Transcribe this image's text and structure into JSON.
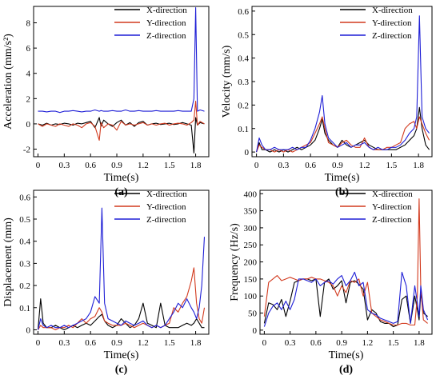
{
  "figure": {
    "colors": {
      "X-direction": "#000000",
      "Y-direction": "#d23a1e",
      "Z-direction": "#1f1fd6"
    },
    "series_names": [
      "X-direction",
      "Y-direction",
      "Z-direction"
    ]
  },
  "chart_data": [
    {
      "type": "line",
      "panel_label": "(a)",
      "xlabel": "Time(s)",
      "ylabel": "Acceleration (mm/s²)",
      "xlim": [
        -0.05,
        1.95
      ],
      "ylim": [
        -2.6,
        9.3
      ],
      "xticks": [
        0,
        0.3,
        0.6,
        0.9,
        1.2,
        1.5,
        1.8
      ],
      "yticks": [
        -2,
        0,
        2,
        4,
        6,
        8
      ],
      "x": [
        0,
        0.05,
        0.1,
        0.15,
        0.2,
        0.25,
        0.3,
        0.35,
        0.4,
        0.45,
        0.5,
        0.55,
        0.6,
        0.65,
        0.7,
        0.72,
        0.75,
        0.8,
        0.85,
        0.9,
        0.95,
        1.0,
        1.05,
        1.1,
        1.15,
        1.2,
        1.25,
        1.3,
        1.35,
        1.4,
        1.45,
        1.5,
        1.55,
        1.6,
        1.65,
        1.7,
        1.75,
        1.78,
        1.8,
        1.82,
        1.85,
        1.9
      ],
      "series": [
        {
          "name": "X-direction",
          "values": [
            0,
            -0.1,
            0.05,
            -0.1,
            0,
            -0.05,
            0.05,
            0,
            -0.1,
            0.05,
            0,
            0.1,
            0.2,
            -0.3,
            0.5,
            -0.2,
            0.3,
            0,
            -0.2,
            0.1,
            0.3,
            -0.1,
            0.1,
            -0.2,
            0.1,
            0.2,
            -0.1,
            0,
            0.05,
            -0.05,
            0,
            0.05,
            -0.05,
            0,
            0.1,
            0,
            -0.1,
            -2.3,
            0.5,
            -0.1,
            0.1,
            0
          ]
        },
        {
          "name": "Y-direction",
          "values": [
            0,
            -0.2,
            0,
            -0.1,
            -0.2,
            0,
            -0.1,
            -0.2,
            0,
            -0.1,
            -0.3,
            0,
            0.1,
            -0.2,
            -1.3,
            0.1,
            -0.3,
            0,
            -0.1,
            -0.5,
            0.2,
            -0.1,
            0,
            -0.1,
            0,
            0.1,
            -0.1,
            0,
            -0.1,
            0,
            0.05,
            -0.1,
            0,
            0.05,
            0,
            -0.1,
            0.1,
            0.3,
            1.8,
            -0.1,
            0.2,
            0
          ]
        },
        {
          "name": "Z-direction",
          "values": [
            1.0,
            1.0,
            0.95,
            1.0,
            1.0,
            0.9,
            1.0,
            1.0,
            1.05,
            1.0,
            0.95,
            1.0,
            1.0,
            1.1,
            1.0,
            1.05,
            1.0,
            1.0,
            1.05,
            1.0,
            1.0,
            1.1,
            1.0,
            1.0,
            1.05,
            1.0,
            1.0,
            1.0,
            1.05,
            1.0,
            1.0,
            1.0,
            1.0,
            1.05,
            1.0,
            1.0,
            1.0,
            2.0,
            9.2,
            1.0,
            1.1,
            1.0
          ]
        }
      ]
    },
    {
      "type": "line",
      "panel_label": "(b)",
      "xlabel": "Time(s)",
      "ylabel": "Velocity (mm/s)",
      "xlim": [
        -0.05,
        1.95
      ],
      "ylim": [
        -0.02,
        0.62
      ],
      "xticks": [
        0,
        0.3,
        0.6,
        0.9,
        1.2,
        1.5,
        1.8
      ],
      "yticks": [
        0,
        0.1,
        0.2,
        0.3,
        0.4,
        0.5,
        0.6
      ],
      "x": [
        0,
        0.03,
        0.06,
        0.1,
        0.15,
        0.2,
        0.25,
        0.3,
        0.35,
        0.4,
        0.45,
        0.5,
        0.55,
        0.6,
        0.65,
        0.7,
        0.73,
        0.76,
        0.8,
        0.85,
        0.9,
        0.95,
        1.0,
        1.05,
        1.1,
        1.15,
        1.2,
        1.25,
        1.3,
        1.35,
        1.4,
        1.45,
        1.5,
        1.55,
        1.6,
        1.65,
        1.7,
        1.75,
        1.78,
        1.81,
        1.84,
        1.88,
        1.92
      ],
      "series": [
        {
          "name": "X-direction",
          "values": [
            0,
            0.04,
            0.01,
            0.01,
            0,
            0.01,
            0,
            0.01,
            0,
            0.01,
            0.02,
            0.01,
            0.02,
            0.03,
            0.05,
            0.1,
            0.14,
            0.08,
            0.05,
            0.03,
            0.02,
            0.05,
            0.03,
            0.02,
            0.03,
            0.04,
            0.05,
            0.03,
            0.02,
            0.01,
            0.01,
            0.01,
            0.01,
            0.01,
            0.02,
            0.03,
            0.05,
            0.07,
            0.1,
            0.19,
            0.1,
            0.03,
            0.01
          ]
        },
        {
          "name": "Y-direction",
          "values": [
            0,
            0.03,
            0.02,
            0.01,
            0.01,
            0,
            0.01,
            0,
            0.01,
            0,
            0.01,
            0.02,
            0.03,
            0.04,
            0.08,
            0.12,
            0.15,
            0.1,
            0.04,
            0.03,
            0.02,
            0.04,
            0.05,
            0.03,
            0.02,
            0.02,
            0.06,
            0.02,
            0.01,
            0.01,
            0.01,
            0.02,
            0.02,
            0.03,
            0.04,
            0.1,
            0.12,
            0.13,
            0.1,
            0.15,
            0.12,
            0.08,
            0.05
          ]
        },
        {
          "name": "Z-direction",
          "values": [
            0,
            0.06,
            0.03,
            0.01,
            0.01,
            0.02,
            0.01,
            0.01,
            0.01,
            0.02,
            0.01,
            0.02,
            0.02,
            0.05,
            0.1,
            0.17,
            0.24,
            0.12,
            0.06,
            0.04,
            0.02,
            0.03,
            0.04,
            0.02,
            0.03,
            0.03,
            0.04,
            0.02,
            0.01,
            0.02,
            0.01,
            0.01,
            0.02,
            0.02,
            0.03,
            0.05,
            0.08,
            0.1,
            0.15,
            0.58,
            0.15,
            0.1,
            0.08
          ]
        }
      ]
    },
    {
      "type": "line",
      "panel_label": "(c)",
      "xlabel": "Time(s)",
      "ylabel": "Displacement (mm)",
      "xlim": [
        -0.05,
        1.95
      ],
      "ylim": [
        -0.02,
        0.63
      ],
      "xticks": [
        0,
        0.3,
        0.6,
        0.9,
        1.2,
        1.5,
        1.8
      ],
      "yticks": [
        0,
        0.1,
        0.2,
        0.3,
        0.4,
        0.5,
        0.6
      ],
      "x": [
        0,
        0.03,
        0.06,
        0.1,
        0.15,
        0.2,
        0.25,
        0.3,
        0.35,
        0.4,
        0.45,
        0.5,
        0.55,
        0.6,
        0.65,
        0.7,
        0.73,
        0.76,
        0.8,
        0.85,
        0.9,
        0.95,
        1.0,
        1.05,
        1.1,
        1.15,
        1.2,
        1.25,
        1.3,
        1.35,
        1.4,
        1.45,
        1.5,
        1.55,
        1.6,
        1.65,
        1.7,
        1.75,
        1.78,
        1.81,
        1.84,
        1.87,
        1.9
      ],
      "series": [
        {
          "name": "X-direction",
          "values": [
            0,
            0.14,
            0.03,
            0.01,
            0.01,
            0.02,
            0.01,
            0,
            0.01,
            0.02,
            0.01,
            0.02,
            0.03,
            0.02,
            0.04,
            0.06,
            0.07,
            0.04,
            0.02,
            0.01,
            0.02,
            0.05,
            0.03,
            0.01,
            0.02,
            0.05,
            0.12,
            0.03,
            0.02,
            0.01,
            0.12,
            0.02,
            0.01,
            0.01,
            0.01,
            0.02,
            0.03,
            0.02,
            0.03,
            0.05,
            0.03,
            0.01,
            0.01
          ]
        },
        {
          "name": "Y-direction",
          "values": [
            0,
            0.02,
            0.01,
            0.01,
            0.01,
            0,
            0.01,
            0.01,
            0.02,
            0.01,
            0.03,
            0.05,
            0.03,
            0.05,
            0.06,
            0.1,
            0.08,
            0.04,
            0.03,
            0.02,
            0.02,
            0.02,
            0.03,
            0.02,
            0.01,
            0.02,
            0.03,
            0.02,
            0.01,
            0.02,
            0.01,
            0.02,
            0.03,
            0.1,
            0.08,
            0.12,
            0.15,
            0.22,
            0.28,
            0.12,
            0.05,
            0.03,
            0.1
          ]
        },
        {
          "name": "Z-direction",
          "values": [
            0,
            0.05,
            0.02,
            0.01,
            0.02,
            0.01,
            0.01,
            0.02,
            0.01,
            0.02,
            0.03,
            0.04,
            0.05,
            0.08,
            0.15,
            0.12,
            0.55,
            0.12,
            0.05,
            0.04,
            0.03,
            0.02,
            0.04,
            0.03,
            0.02,
            0.03,
            0.04,
            0.02,
            0.01,
            0.02,
            0.01,
            0.02,
            0.05,
            0.08,
            0.12,
            0.1,
            0.14,
            0.1,
            0.08,
            0.05,
            0.1,
            0.2,
            0.42
          ]
        }
      ]
    },
    {
      "type": "line",
      "panel_label": "(d)",
      "xlabel": "Time(s)",
      "ylabel": "Frequency (Hz/s)",
      "xlim": [
        -0.05,
        1.95
      ],
      "ylim": [
        -12,
        410
      ],
      "xticks": [
        0,
        0.3,
        0.6,
        0.9,
        1.2,
        1.5,
        1.8
      ],
      "yticks": [
        0,
        50,
        100,
        150,
        200,
        250,
        300,
        350,
        400
      ],
      "x": [
        0,
        0.05,
        0.1,
        0.15,
        0.2,
        0.25,
        0.3,
        0.35,
        0.4,
        0.45,
        0.5,
        0.55,
        0.6,
        0.65,
        0.7,
        0.75,
        0.8,
        0.85,
        0.9,
        0.95,
        1.0,
        1.05,
        1.1,
        1.15,
        1.2,
        1.25,
        1.3,
        1.35,
        1.4,
        1.45,
        1.5,
        1.55,
        1.6,
        1.65,
        1.7,
        1.75,
        1.78,
        1.8,
        1.82,
        1.85,
        1.9
      ],
      "series": [
        {
          "name": "X-direction",
          "values": [
            20,
            80,
            75,
            60,
            90,
            40,
            85,
            140,
            145,
            150,
            150,
            145,
            150,
            40,
            140,
            150,
            120,
            130,
            145,
            80,
            140,
            145,
            135,
            120,
            30,
            60,
            50,
            25,
            20,
            20,
            10,
            15,
            90,
            100,
            20,
            100,
            60,
            30,
            110,
            50,
            40
          ]
        },
        {
          "name": "Y-direction",
          "values": [
            40,
            140,
            150,
            160,
            145,
            150,
            155,
            150,
            145,
            150,
            150,
            155,
            150,
            150,
            145,
            140,
            130,
            100,
            130,
            110,
            145,
            140,
            150,
            100,
            140,
            50,
            40,
            30,
            25,
            20,
            15,
            15,
            20,
            20,
            15,
            15,
            100,
            385,
            120,
            30,
            20
          ]
        },
        {
          "name": "Z-direction",
          "values": [
            10,
            50,
            70,
            80,
            60,
            85,
            60,
            90,
            150,
            150,
            145,
            140,
            150,
            130,
            140,
            145,
            135,
            150,
            160,
            130,
            145,
            170,
            130,
            140,
            60,
            50,
            45,
            35,
            30,
            25,
            20,
            25,
            170,
            130,
            20,
            130,
            80,
            40,
            130,
            60,
            30
          ]
        }
      ]
    }
  ]
}
